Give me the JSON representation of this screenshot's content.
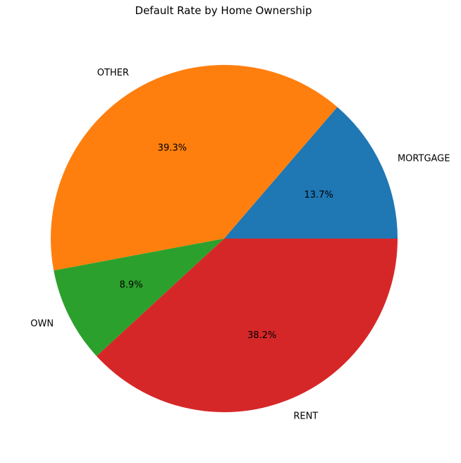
{
  "chart_data": {
    "type": "pie",
    "title": "Default Rate by Home Ownership",
    "categories": [
      "MORTGAGE",
      "OTHER",
      "OWN",
      "RENT"
    ],
    "values": [
      13.7,
      39.3,
      8.9,
      38.2
    ],
    "value_labels": [
      "13.7%",
      "39.3%",
      "8.9%",
      "38.2%"
    ],
    "colors": [
      "#1f77b4",
      "#ff7f0e",
      "#2ca02c",
      "#d62728"
    ],
    "start_angle_deg": 0,
    "direction": "counterclockwise",
    "legend": "none"
  }
}
